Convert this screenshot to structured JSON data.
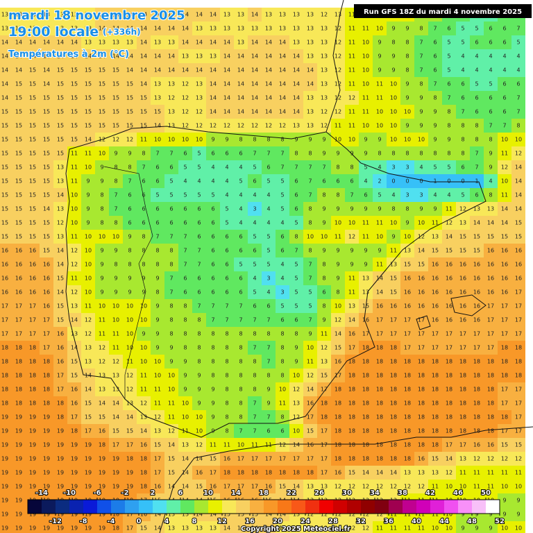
{
  "header": {
    "date": "mardi 18 novembre 2025",
    "time": "19:00 locale",
    "lead": "(+336h)",
    "field": "Températures à 2m (°C)",
    "run": "Run GFS 18Z du mardi 4 novembre 2025"
  },
  "footer": {
    "copyright": "Copyright 2025 Meteociel.fr"
  },
  "legend": {
    "lim": [
      -16,
      52
    ],
    "ticks_top": [
      -14,
      -10,
      -6,
      -2,
      2,
      6,
      10,
      14,
      18,
      22,
      26,
      30,
      34,
      38,
      42,
      46,
      50
    ],
    "ticks_bottom": [
      -12,
      -8,
      -4,
      0,
      4,
      8,
      12,
      16,
      20,
      24,
      28,
      32,
      36,
      40,
      44,
      48,
      52
    ],
    "colors": [
      "#06063a",
      "#0b1a5c",
      "#0b2c80",
      "#0a22b0",
      "#0a1ad8",
      "#1050e8",
      "#1c7ce8",
      "#2ea0f0",
      "#36c0f8",
      "#50e0f0",
      "#60f0a8",
      "#60e860",
      "#a8e830",
      "#e8f000",
      "#f8e858",
      "#f8d060",
      "#f8b040",
      "#f89828",
      "#f87818",
      "#f85818",
      "#f03010",
      "#f00000",
      "#d00000",
      "#b00000",
      "#900000",
      "#800010",
      "#a00050",
      "#c00090",
      "#d000b8",
      "#e020d8",
      "#f050f0",
      "#f890f8",
      "#f8c0f8",
      "#ffffff"
    ]
  },
  "grid": {
    "rows": [
      [
        13,
        13,
        13,
        13,
        13,
        13,
        13,
        14,
        14,
        14,
        14,
        14,
        14,
        14,
        14,
        14,
        13,
        13,
        14,
        13,
        13,
        13,
        13,
        12,
        13,
        11,
        11,
        11,
        11,
        10,
        9,
        8,
        7,
        6,
        5,
        5,
        6,
        7
      ],
      [
        13,
        13,
        13,
        13,
        13,
        13,
        13,
        14,
        14,
        14,
        14,
        14,
        14,
        14,
        13,
        13,
        13,
        13,
        13,
        13,
        13,
        13,
        13,
        13,
        12,
        11,
        11,
        10,
        9,
        9,
        8,
        7,
        6,
        5,
        5,
        6,
        6,
        7
      ],
      [
        14,
        14,
        14,
        14,
        14,
        14,
        13,
        13,
        13,
        13,
        14,
        13,
        13,
        14,
        14,
        14,
        14,
        13,
        14,
        14,
        14,
        13,
        13,
        13,
        12,
        11,
        10,
        9,
        8,
        8,
        7,
        6,
        5,
        5,
        6,
        6,
        6,
        5
      ],
      [
        14,
        14,
        14,
        14,
        14,
        14,
        14,
        14,
        14,
        14,
        14,
        14,
        14,
        13,
        13,
        13,
        14,
        14,
        14,
        14,
        14,
        14,
        13,
        13,
        12,
        11,
        10,
        9,
        9,
        8,
        7,
        6,
        5,
        4,
        4,
        4,
        4,
        4
      ],
      [
        14,
        14,
        15,
        14,
        15,
        15,
        15,
        15,
        15,
        14,
        14,
        14,
        14,
        14,
        14,
        14,
        14,
        14,
        14,
        14,
        14,
        14,
        14,
        13,
        12,
        11,
        10,
        9,
        9,
        8,
        7,
        6,
        5,
        4,
        4,
        4,
        4,
        4
      ],
      [
        14,
        15,
        15,
        14,
        15,
        15,
        15,
        15,
        15,
        15,
        14,
        13,
        13,
        12,
        13,
        14,
        14,
        14,
        14,
        14,
        14,
        14,
        14,
        13,
        12,
        11,
        10,
        11,
        10,
        9,
        8,
        7,
        6,
        6,
        5,
        5,
        6,
        6
      ],
      [
        14,
        15,
        15,
        15,
        15,
        15,
        15,
        15,
        15,
        15,
        15,
        13,
        12,
        12,
        13,
        14,
        14,
        14,
        14,
        14,
        14,
        14,
        13,
        13,
        12,
        12,
        11,
        11,
        10,
        9,
        9,
        8,
        7,
        6,
        6,
        6,
        6,
        7
      ],
      [
        15,
        15,
        15,
        15,
        15,
        15,
        15,
        15,
        15,
        15,
        15,
        15,
        13,
        12,
        12,
        14,
        14,
        14,
        14,
        14,
        14,
        14,
        13,
        12,
        12,
        11,
        11,
        10,
        10,
        10,
        9,
        9,
        8,
        7,
        6,
        6,
        6,
        7
      ],
      [
        15,
        15,
        15,
        15,
        15,
        15,
        15,
        15,
        15,
        15,
        15,
        14,
        13,
        12,
        12,
        12,
        12,
        12,
        12,
        12,
        12,
        13,
        13,
        12,
        11,
        11,
        10,
        10,
        10,
        9,
        9,
        9,
        8,
        8,
        8,
        7,
        7,
        8
      ],
      [
        15,
        15,
        15,
        15,
        15,
        15,
        14,
        12,
        12,
        12,
        11,
        10,
        10,
        10,
        10,
        9,
        9,
        8,
        8,
        8,
        8,
        9,
        9,
        9,
        10,
        10,
        9,
        9,
        10,
        10,
        10,
        9,
        9,
        8,
        8,
        8,
        10,
        10
      ],
      [
        15,
        15,
        15,
        15,
        15,
        11,
        11,
        10,
        9,
        9,
        8,
        7,
        7,
        6,
        5,
        6,
        6,
        6,
        7,
        7,
        7,
        8,
        8,
        9,
        9,
        9,
        9,
        8,
        8,
        8,
        8,
        8,
        8,
        8,
        7,
        9,
        11,
        12
      ],
      [
        15,
        15,
        15,
        15,
        13,
        11,
        10,
        9,
        8,
        8,
        7,
        6,
        6,
        5,
        5,
        4,
        4,
        4,
        5,
        6,
        7,
        7,
        7,
        7,
        8,
        8,
        5,
        4,
        3,
        3,
        4,
        5,
        5,
        6,
        7,
        9,
        12,
        14
      ],
      [
        15,
        15,
        15,
        15,
        13,
        11,
        9,
        9,
        8,
        7,
        6,
        6,
        5,
        4,
        4,
        4,
        4,
        5,
        6,
        5,
        5,
        6,
        7,
        6,
        6,
        6,
        4,
        2,
        0,
        0,
        0,
        1,
        0,
        0,
        1,
        4,
        10,
        14
      ],
      [
        15,
        15,
        15,
        15,
        14,
        10,
        9,
        8,
        7,
        6,
        6,
        5,
        5,
        5,
        5,
        5,
        4,
        4,
        4,
        4,
        5,
        6,
        7,
        8,
        8,
        7,
        6,
        5,
        4,
        3,
        3,
        4,
        4,
        5,
        6,
        8,
        11,
        14
      ],
      [
        15,
        15,
        15,
        14,
        13,
        10,
        9,
        8,
        7,
        6,
        6,
        6,
        6,
        6,
        6,
        6,
        5,
        4,
        3,
        4,
        5,
        6,
        8,
        9,
        9,
        9,
        9,
        9,
        8,
        8,
        9,
        9,
        11,
        12,
        13,
        13,
        14,
        14
      ],
      [
        15,
        15,
        15,
        15,
        12,
        10,
        9,
        8,
        8,
        6,
        6,
        6,
        6,
        6,
        6,
        6,
        5,
        4,
        4,
        4,
        4,
        5,
        8,
        9,
        10,
        10,
        11,
        11,
        10,
        9,
        10,
        11,
        12,
        13,
        14,
        14,
        14,
        15
      ],
      [
        15,
        15,
        15,
        15,
        13,
        11,
        10,
        10,
        10,
        9,
        8,
        7,
        7,
        7,
        6,
        6,
        6,
        6,
        5,
        5,
        6,
        8,
        10,
        10,
        11,
        12,
        11,
        10,
        9,
        10,
        12,
        13,
        14,
        15,
        15,
        15,
        15,
        15
      ],
      [
        16,
        16,
        16,
        15,
        14,
        12,
        10,
        9,
        9,
        8,
        8,
        8,
        8,
        7,
        7,
        6,
        6,
        6,
        6,
        5,
        6,
        7,
        8,
        9,
        9,
        9,
        9,
        9,
        11,
        13,
        14,
        15,
        15,
        15,
        15,
        16,
        16,
        16
      ],
      [
        16,
        16,
        16,
        16,
        14,
        12,
        10,
        9,
        8,
        8,
        8,
        8,
        8,
        7,
        7,
        6,
        6,
        5,
        5,
        5,
        4,
        5,
        7,
        8,
        9,
        9,
        9,
        11,
        13,
        15,
        15,
        16,
        16,
        16,
        16,
        16,
        16,
        16
      ],
      [
        16,
        16,
        16,
        16,
        15,
        11,
        10,
        9,
        9,
        9,
        9,
        9,
        7,
        6,
        6,
        6,
        6,
        6,
        4,
        3,
        4,
        5,
        7,
        8,
        9,
        11,
        13,
        14,
        15,
        16,
        16,
        16,
        16,
        16,
        16,
        16,
        16,
        16
      ],
      [
        16,
        16,
        16,
        16,
        14,
        12,
        10,
        9,
        9,
        9,
        9,
        8,
        7,
        6,
        6,
        6,
        6,
        6,
        5,
        4,
        3,
        5,
        5,
        6,
        8,
        11,
        13,
        14,
        15,
        16,
        16,
        16,
        16,
        16,
        16,
        16,
        16,
        17
      ],
      [
        17,
        17,
        17,
        16,
        15,
        13,
        11,
        10,
        10,
        10,
        10,
        9,
        8,
        8,
        7,
        7,
        7,
        7,
        6,
        6,
        5,
        5,
        5,
        8,
        10,
        13,
        15,
        16,
        16,
        16,
        16,
        16,
        16,
        16,
        16,
        17,
        17,
        17
      ],
      [
        17,
        17,
        17,
        17,
        15,
        14,
        12,
        11,
        10,
        10,
        10,
        9,
        8,
        8,
        8,
        7,
        7,
        7,
        7,
        7,
        6,
        6,
        7,
        9,
        12,
        14,
        16,
        17,
        17,
        17,
        17,
        16,
        16,
        16,
        16,
        17,
        17,
        17
      ],
      [
        17,
        17,
        17,
        17,
        16,
        13,
        12,
        11,
        11,
        10,
        9,
        9,
        8,
        8,
        8,
        8,
        8,
        8,
        8,
        8,
        8,
        8,
        9,
        11,
        14,
        16,
        17,
        17,
        17,
        17,
        17,
        17,
        17,
        17,
        17,
        17,
        17,
        17
      ],
      [
        18,
        18,
        18,
        17,
        16,
        14,
        13,
        12,
        11,
        10,
        10,
        9,
        9,
        8,
        8,
        8,
        8,
        8,
        7,
        7,
        8,
        9,
        10,
        12,
        15,
        17,
        18,
        18,
        18,
        17,
        17,
        17,
        17,
        17,
        17,
        17,
        18,
        18
      ],
      [
        18,
        18,
        18,
        18,
        16,
        15,
        13,
        12,
        12,
        11,
        10,
        10,
        9,
        9,
        8,
        8,
        8,
        8,
        8,
        7,
        8,
        9,
        11,
        13,
        16,
        18,
        18,
        18,
        18,
        18,
        18,
        18,
        18,
        18,
        18,
        18,
        18,
        18
      ],
      [
        18,
        18,
        18,
        18,
        17,
        15,
        14,
        13,
        13,
        12,
        11,
        10,
        10,
        9,
        9,
        8,
        8,
        8,
        8,
        8,
        8,
        10,
        12,
        15,
        17,
        18,
        18,
        18,
        18,
        18,
        18,
        18,
        18,
        18,
        18,
        18,
        18,
        18
      ],
      [
        18,
        18,
        18,
        18,
        17,
        16,
        14,
        13,
        13,
        12,
        11,
        11,
        10,
        9,
        9,
        9,
        8,
        8,
        8,
        9,
        10,
        12,
        14,
        17,
        18,
        18,
        18,
        18,
        18,
        18,
        18,
        18,
        18,
        18,
        18,
        18,
        17,
        17
      ],
      [
        18,
        18,
        18,
        18,
        18,
        16,
        15,
        14,
        14,
        13,
        12,
        11,
        11,
        10,
        9,
        9,
        8,
        8,
        7,
        9,
        11,
        13,
        16,
        18,
        18,
        18,
        18,
        18,
        18,
        18,
        18,
        18,
        18,
        18,
        18,
        18,
        17,
        17
      ],
      [
        19,
        19,
        19,
        19,
        18,
        17,
        15,
        15,
        14,
        14,
        13,
        12,
        11,
        10,
        10,
        9,
        8,
        8,
        7,
        7,
        8,
        12,
        17,
        18,
        18,
        18,
        18,
        18,
        18,
        18,
        18,
        18,
        18,
        18,
        18,
        18,
        18,
        17
      ],
      [
        19,
        19,
        19,
        19,
        19,
        18,
        17,
        16,
        15,
        15,
        14,
        13,
        12,
        11,
        10,
        9,
        8,
        7,
        7,
        6,
        6,
        10,
        15,
        17,
        18,
        18,
        18,
        18,
        18,
        18,
        18,
        18,
        18,
        18,
        18,
        18,
        17,
        17
      ],
      [
        19,
        19,
        19,
        19,
        19,
        19,
        19,
        18,
        17,
        17,
        16,
        15,
        14,
        13,
        12,
        11,
        11,
        10,
        11,
        11,
        12,
        14,
        16,
        17,
        18,
        18,
        18,
        18,
        18,
        18,
        18,
        18,
        17,
        17,
        16,
        16,
        15,
        15
      ],
      [
        19,
        19,
        19,
        19,
        19,
        19,
        19,
        19,
        19,
        18,
        18,
        17,
        15,
        14,
        14,
        15,
        16,
        17,
        17,
        17,
        17,
        17,
        17,
        17,
        18,
        18,
        18,
        18,
        18,
        18,
        16,
        15,
        14,
        13,
        12,
        12,
        12,
        12
      ],
      [
        19,
        19,
        19,
        19,
        19,
        19,
        19,
        19,
        19,
        19,
        18,
        17,
        15,
        14,
        16,
        17,
        18,
        18,
        18,
        18,
        18,
        18,
        18,
        17,
        16,
        15,
        14,
        14,
        14,
        13,
        13,
        13,
        12,
        11,
        11,
        11,
        11,
        11
      ],
      [
        19,
        19,
        19,
        19,
        19,
        19,
        19,
        19,
        19,
        19,
        18,
        16,
        14,
        14,
        15,
        16,
        17,
        17,
        17,
        16,
        15,
        14,
        13,
        13,
        12,
        12,
        12,
        12,
        12,
        12,
        12,
        11,
        10,
        10,
        11,
        11,
        10,
        10
      ],
      [
        19,
        19,
        19,
        19,
        19,
        19,
        19,
        19,
        19,
        18,
        17,
        15,
        14,
        14,
        14,
        15,
        16,
        16,
        16,
        15,
        14,
        14,
        13,
        12,
        12,
        12,
        12,
        12,
        12,
        11,
        11,
        11,
        10,
        10,
        10,
        10,
        9,
        9
      ],
      [
        19,
        19,
        19,
        19,
        19,
        19,
        19,
        19,
        18,
        17,
        16,
        14,
        13,
        13,
        14,
        14,
        15,
        15,
        15,
        14,
        14,
        13,
        12,
        12,
        12,
        12,
        12,
        12,
        11,
        11,
        11,
        11,
        10,
        9,
        9,
        9,
        9,
        9
      ],
      [
        19,
        19,
        19,
        19,
        19,
        19,
        19,
        19,
        18,
        17,
        15,
        14,
        13,
        13,
        13,
        13,
        14,
        14,
        14,
        14,
        13,
        13,
        12,
        12,
        12,
        12,
        12,
        11,
        11,
        11,
        11,
        10,
        10,
        9,
        9,
        9,
        10,
        10
      ]
    ]
  }
}
